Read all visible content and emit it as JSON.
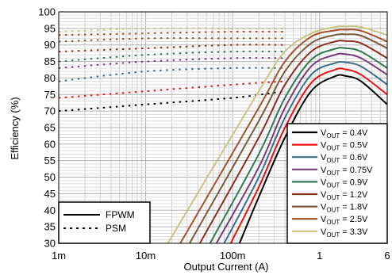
{
  "chart_data": {
    "type": "line",
    "xlabel": "Output Current (A)",
    "ylabel": "Efficiency (%)",
    "xscale": "log",
    "xlim": [
      0.001,
      6
    ],
    "ylim": [
      30,
      100
    ],
    "grid": true,
    "x_ticks": [
      {
        "value": 0.001,
        "label": "1m"
      },
      {
        "value": 0.01,
        "label": "10m"
      },
      {
        "value": 0.1,
        "label": "100m"
      },
      {
        "value": 1,
        "label": "1"
      },
      {
        "value": 6,
        "label": "6"
      }
    ],
    "y_ticks": [
      30,
      35,
      40,
      45,
      50,
      55,
      60,
      65,
      70,
      75,
      80,
      85,
      90,
      95,
      100
    ],
    "legend_modes": [
      {
        "label": "FPWM",
        "style": "solid"
      },
      {
        "label": "PSM",
        "style": "dotted"
      }
    ],
    "series": [
      {
        "name_main": "V",
        "name_sub": "OUT",
        "name_rest": " = 0.4V",
        "color": "#000000",
        "fpwm": [
          [
            0.12,
            30
          ],
          [
            0.2,
            44
          ],
          [
            0.4,
            62
          ],
          [
            0.8,
            76
          ],
          [
            1.5,
            80.5
          ],
          [
            2,
            80.6
          ],
          [
            3,
            79
          ],
          [
            6,
            72
          ]
        ],
        "psm": [
          [
            0.001,
            70
          ],
          [
            0.01,
            72
          ],
          [
            0.1,
            74
          ],
          [
            0.4,
            76
          ]
        ]
      },
      {
        "name_main": "V",
        "name_sub": "OUT",
        "name_rest": " = 0.5V",
        "color": "#ee1111",
        "fpwm": [
          [
            0.095,
            30
          ],
          [
            0.2,
            47
          ],
          [
            0.4,
            65
          ],
          [
            0.8,
            78.5
          ],
          [
            1.5,
            82.5
          ],
          [
            2,
            82.6
          ],
          [
            3,
            81
          ],
          [
            6,
            75
          ]
        ],
        "psm": [
          [
            0.001,
            74
          ],
          [
            0.01,
            76
          ],
          [
            0.1,
            78
          ],
          [
            0.4,
            79
          ]
        ]
      },
      {
        "name_main": "V",
        "name_sub": "OUT",
        "name_rest": " = 0.6V",
        "color": "#3a6d8c",
        "fpwm": [
          [
            0.08,
            30
          ],
          [
            0.2,
            50
          ],
          [
            0.4,
            68
          ],
          [
            0.8,
            81
          ],
          [
            1.5,
            84.5
          ],
          [
            2,
            84.7
          ],
          [
            3,
            83.5
          ],
          [
            6,
            78
          ]
        ],
        "psm": [
          [
            0.001,
            79
          ],
          [
            0.01,
            82
          ],
          [
            0.1,
            83
          ],
          [
            0.4,
            83
          ]
        ]
      },
      {
        "name_main": "V",
        "name_sub": "OUT",
        "name_rest": " = 0.75V",
        "color": "#7a3a7a",
        "fpwm": [
          [
            0.065,
            30
          ],
          [
            0.2,
            53
          ],
          [
            0.4,
            71
          ],
          [
            0.8,
            83.5
          ],
          [
            1.5,
            87
          ],
          [
            2,
            87.2
          ],
          [
            3,
            86
          ],
          [
            6,
            81
          ]
        ],
        "psm": [
          [
            0.001,
            83
          ],
          [
            0.01,
            85
          ],
          [
            0.1,
            86
          ],
          [
            0.4,
            86
          ]
        ]
      },
      {
        "name_main": "V",
        "name_sub": "OUT",
        "name_rest": " = 0.9V",
        "color": "#2e7a4e",
        "fpwm": [
          [
            0.055,
            30
          ],
          [
            0.2,
            57
          ],
          [
            0.4,
            74
          ],
          [
            0.8,
            85.5
          ],
          [
            1.5,
            88.8
          ],
          [
            2,
            89
          ],
          [
            3,
            88
          ],
          [
            6,
            83
          ]
        ],
        "psm": [
          [
            0.001,
            85
          ],
          [
            0.01,
            87
          ],
          [
            0.1,
            88
          ],
          [
            0.4,
            88
          ]
        ]
      },
      {
        "name_main": "V",
        "name_sub": "OUT",
        "name_rest": " = 1.2V",
        "color": "#8b2f22",
        "fpwm": [
          [
            0.042,
            30
          ],
          [
            0.2,
            62
          ],
          [
            0.4,
            78
          ],
          [
            0.8,
            88
          ],
          [
            1.5,
            91
          ],
          [
            2,
            91.2
          ],
          [
            3,
            90.5
          ],
          [
            6,
            86
          ]
        ],
        "psm": [
          [
            0.001,
            88
          ],
          [
            0.01,
            89
          ],
          [
            0.1,
            90
          ],
          [
            0.4,
            90
          ]
        ]
      },
      {
        "name_main": "V",
        "name_sub": "OUT",
        "name_rest": " = 1.8V",
        "color": "#7a5a3a",
        "fpwm": [
          [
            0.032,
            30
          ],
          [
            0.2,
            67
          ],
          [
            0.4,
            82
          ],
          [
            0.8,
            90.5
          ],
          [
            1.5,
            93
          ],
          [
            2,
            93.2
          ],
          [
            3,
            92.8
          ],
          [
            6,
            89
          ]
        ],
        "psm": [
          [
            0.001,
            91
          ],
          [
            0.01,
            92
          ],
          [
            0.1,
            92
          ],
          [
            0.4,
            92
          ]
        ]
      },
      {
        "name_main": "V",
        "name_sub": "OUT",
        "name_rest": " = 2.5V",
        "color": "#a4512c",
        "fpwm": [
          [
            0.025,
            30
          ],
          [
            0.2,
            71
          ],
          [
            0.4,
            85
          ],
          [
            0.8,
            92.5
          ],
          [
            1.5,
            94.4
          ],
          [
            2,
            94.6
          ],
          [
            3,
            94.3
          ],
          [
            6,
            91
          ]
        ],
        "psm": [
          [
            0.001,
            93
          ],
          [
            0.01,
            93.5
          ],
          [
            0.1,
            94
          ],
          [
            0.4,
            94
          ]
        ]
      },
      {
        "name_main": "V",
        "name_sub": "OUT",
        "name_rest": " = 3.3V",
        "color": "#c8c482",
        "fpwm": [
          [
            0.018,
            30
          ],
          [
            0.2,
            76
          ],
          [
            0.4,
            88
          ],
          [
            0.8,
            93.5
          ],
          [
            1.5,
            95.4
          ],
          [
            2,
            95.6
          ],
          [
            3,
            95.4
          ],
          [
            6,
            93
          ]
        ],
        "psm": [
          [
            0.001,
            94
          ],
          [
            0.01,
            95
          ],
          [
            0.1,
            95
          ],
          [
            0.4,
            95
          ]
        ]
      }
    ]
  }
}
